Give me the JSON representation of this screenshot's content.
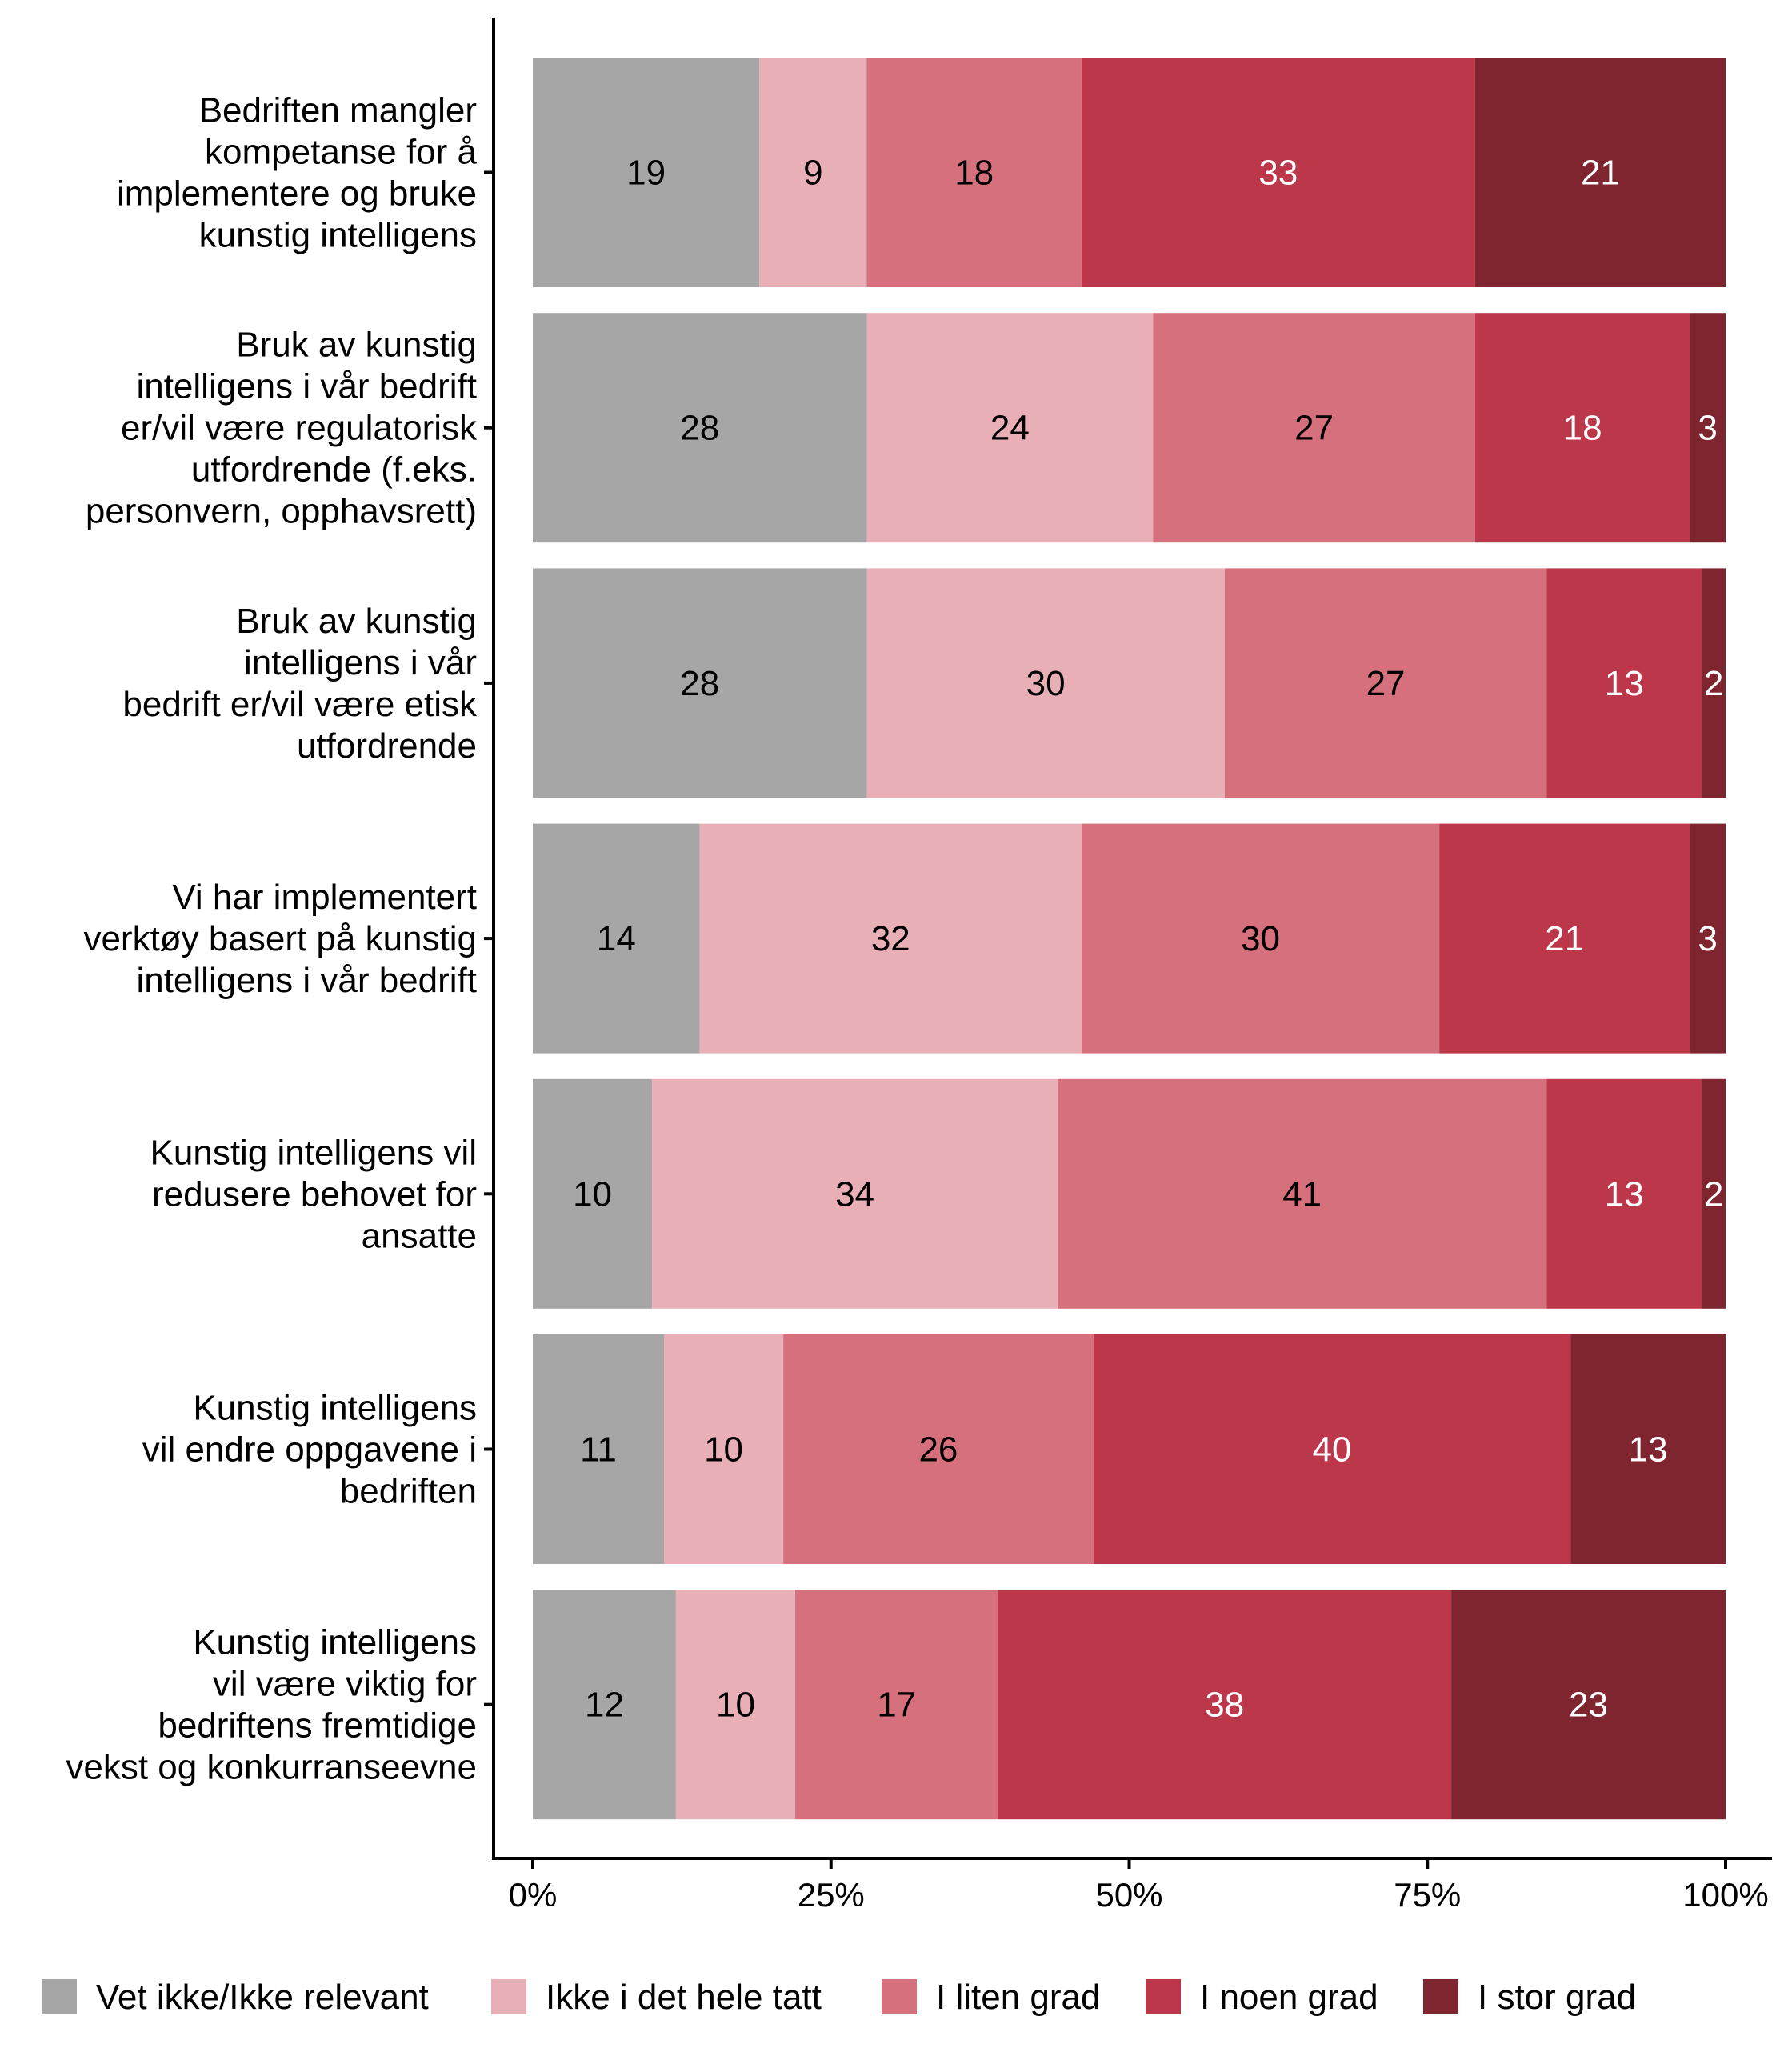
{
  "chart_data": {
    "type": "bar",
    "orientation": "horizontal",
    "stacked": true,
    "title": "",
    "xlabel": "",
    "ylabel": "",
    "xlim": [
      0,
      100
    ],
    "x_ticks": [
      "0%",
      "25%",
      "50%",
      "75%",
      "100%"
    ],
    "grid": false,
    "legend_position": "bottom",
    "categories": [
      [
        "Bedriften mangler",
        "kompetanse for å",
        "implementere og bruke",
        "kunstig intelligens"
      ],
      [
        "Bruk av kunstig",
        "intelligens i vår bedrift",
        "er/vil være regulatorisk",
        "utfordrende (f.eks.",
        "personvern, opphavsrett)"
      ],
      [
        "Bruk av kunstig",
        "intelligens i vår",
        "bedrift er/vil være etisk",
        "utfordrende"
      ],
      [
        "Vi har implementert",
        "verktøy basert på kunstig",
        "intelligens i vår bedrift"
      ],
      [
        "Kunstig intelligens vil",
        "redusere behovet for",
        "ansatte"
      ],
      [
        "Kunstig intelligens",
        "vil endre oppgavene i",
        "bedriften"
      ],
      [
        "Kunstig intelligens",
        "vil være viktig for",
        "bedriftens fremtidige",
        "vekst og konkurranseevne"
      ]
    ],
    "series": [
      {
        "name": "Vet ikke/Ikke relevant",
        "color": "#a6a6a6",
        "label_color": "#000000",
        "values": [
          19,
          28,
          28,
          14,
          10,
          11,
          12
        ]
      },
      {
        "name": "Ikke i det hele tatt",
        "color": "#e8b0b6",
        "label_color": "#000000",
        "values": [
          9,
          24,
          30,
          32,
          34,
          10,
          10
        ]
      },
      {
        "name": "I liten grad",
        "color": "#d6707c",
        "label_color": "#000000",
        "values": [
          18,
          27,
          27,
          30,
          41,
          26,
          17
        ]
      },
      {
        "name": "I noen grad",
        "color": "#bc374a",
        "label_color": "#ffffff",
        "values": [
          33,
          18,
          13,
          21,
          13,
          40,
          38
        ]
      },
      {
        "name": "I stor grad",
        "color": "#7f2530",
        "label_color": "#ffffff",
        "values": [
          21,
          3,
          2,
          3,
          2,
          13,
          23
        ]
      }
    ]
  }
}
